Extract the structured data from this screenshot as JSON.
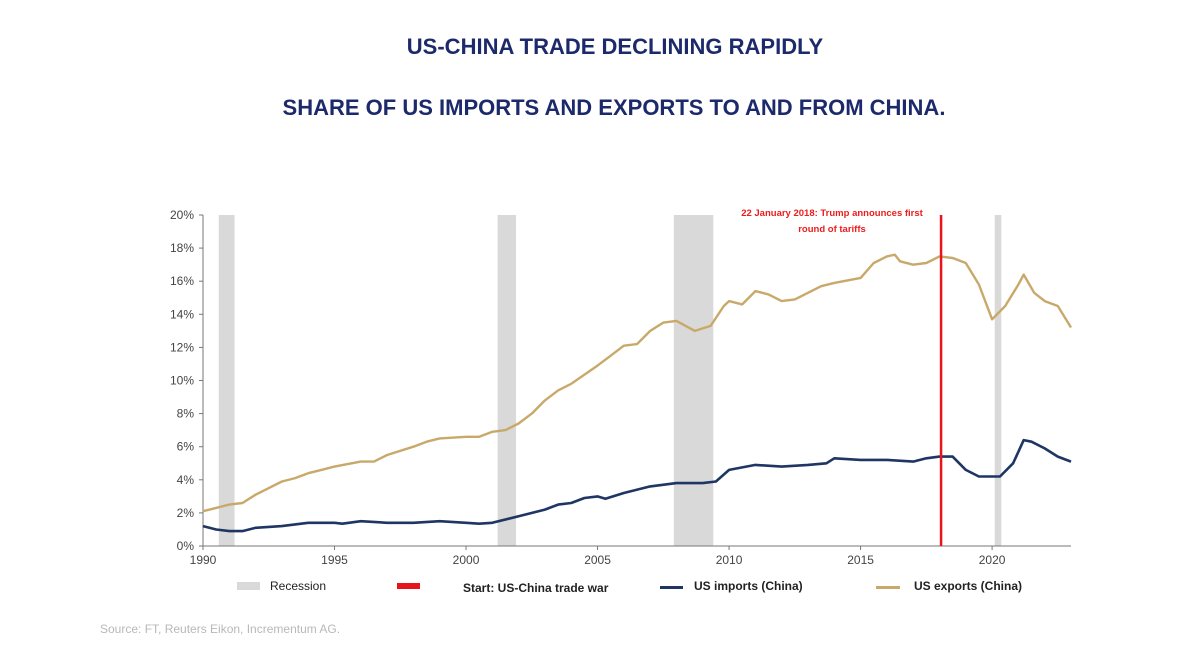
{
  "title": "US-CHINA TRADE DECLINING RAPIDLY",
  "subtitle": "SHARE OF US IMPORTS AND EXPORTS TO AND FROM CHINA.",
  "source": "Source: FT, Reuters Eikon, Incrementum AG.",
  "chart_data": {
    "type": "line",
    "xlim": [
      1990,
      2023
    ],
    "ylim": [
      0,
      20
    ],
    "x_ticks": [
      "1990",
      "1995",
      "2000",
      "2005",
      "2010",
      "2015",
      "2020"
    ],
    "x_tick_values": [
      1990,
      1995,
      2000,
      2005,
      2010,
      2015,
      2020
    ],
    "y_ticks": [
      "0%",
      "2%",
      "4%",
      "6%",
      "8%",
      "10%",
      "12%",
      "14%",
      "16%",
      "18%",
      "20%"
    ],
    "y_tick_values": [
      0,
      2,
      4,
      6,
      8,
      10,
      12,
      14,
      16,
      18,
      20
    ],
    "grid": false,
    "legend_placement": "bottom",
    "recessions": [
      [
        1990.6,
        1991.2
      ],
      [
        2001.2,
        2001.9
      ],
      [
        2007.9,
        2009.4
      ],
      [
        2020.1,
        2020.35
      ]
    ],
    "recession_label": "Recession",
    "recession_color": "#d9d9d9",
    "event": {
      "x": 2018.06,
      "label": "Start: US-China trade war",
      "color": "#e8141c",
      "annotation": [
        "22 January 2018: Trump announces first",
        "round of tariffs"
      ]
    },
    "series": [
      {
        "name": "US imports (China)",
        "color": "#1f3564",
        "x": [
          1990,
          1990.5,
          1991,
          1991.5,
          1992,
          1993,
          1994,
          1995,
          1995.3,
          1996,
          1997,
          1998,
          1999,
          2000,
          2000.5,
          2001,
          2002,
          2003,
          2003.5,
          2004,
          2004.5,
          2005,
          2005.3,
          2006,
          2007,
          2008,
          2009,
          2009.5,
          2010,
          2011,
          2012,
          2013,
          2013.7,
          2014,
          2015,
          2016,
          2017,
          2017.5,
          2018,
          2018.5,
          2019,
          2019.5,
          2020,
          2020.3,
          2020.8,
          2021.2,
          2021.5,
          2022,
          2022.5,
          2023
        ],
        "values": [
          1.2,
          1.0,
          0.9,
          0.9,
          1.1,
          1.2,
          1.4,
          1.4,
          1.35,
          1.5,
          1.4,
          1.4,
          1.5,
          1.4,
          1.35,
          1.4,
          1.8,
          2.2,
          2.5,
          2.6,
          2.9,
          3.0,
          2.85,
          3.2,
          3.6,
          3.8,
          3.8,
          3.9,
          4.6,
          4.9,
          4.8,
          4.9,
          5.0,
          5.3,
          5.2,
          5.2,
          5.1,
          5.3,
          5.4,
          5.4,
          4.6,
          4.2,
          4.2,
          4.2,
          5.0,
          6.4,
          6.3,
          5.9,
          5.4,
          5.1
        ]
      },
      {
        "name": "US exports (China)",
        "color": "#c9a96a",
        "x": [
          1990,
          1990.5,
          1991,
          1991.5,
          1992,
          1992.5,
          1993,
          1993.5,
          1994,
          1994.5,
          1995,
          1996,
          1996.5,
          1997,
          1998,
          1998.5,
          1999,
          2000,
          2000.5,
          2001,
          2001.5,
          2002,
          2002.5,
          2003,
          2003.5,
          2004,
          2005,
          2005.5,
          2006,
          2006.5,
          2007,
          2007.5,
          2008,
          2008.7,
          2009.3,
          2009.8,
          2010,
          2010.5,
          2011,
          2011.5,
          2012,
          2012.5,
          2013,
          2013.5,
          2014,
          2015,
          2015.5,
          2016,
          2016.3,
          2016.5,
          2017,
          2017.5,
          2018,
          2018.5,
          2019,
          2019.5,
          2020,
          2020.5,
          2021,
          2021.2,
          2021.6,
          2022,
          2022.5,
          2023
        ],
        "values": [
          2.1,
          2.3,
          2.5,
          2.6,
          3.1,
          3.5,
          3.9,
          4.1,
          4.4,
          4.6,
          4.8,
          5.1,
          5.1,
          5.5,
          6.0,
          6.3,
          6.5,
          6.6,
          6.6,
          6.9,
          7.0,
          7.4,
          8.0,
          8.8,
          9.4,
          9.8,
          10.9,
          11.5,
          12.1,
          12.2,
          13.0,
          13.5,
          13.6,
          13.0,
          13.3,
          14.5,
          14.8,
          14.6,
          15.4,
          15.2,
          14.8,
          14.9,
          15.3,
          15.7,
          15.9,
          16.2,
          17.1,
          17.5,
          17.6,
          17.2,
          17.0,
          17.1,
          17.5,
          17.4,
          17.1,
          15.8,
          13.7,
          14.5,
          15.8,
          16.4,
          15.3,
          14.8,
          14.5,
          13.2
        ]
      }
    ]
  }
}
